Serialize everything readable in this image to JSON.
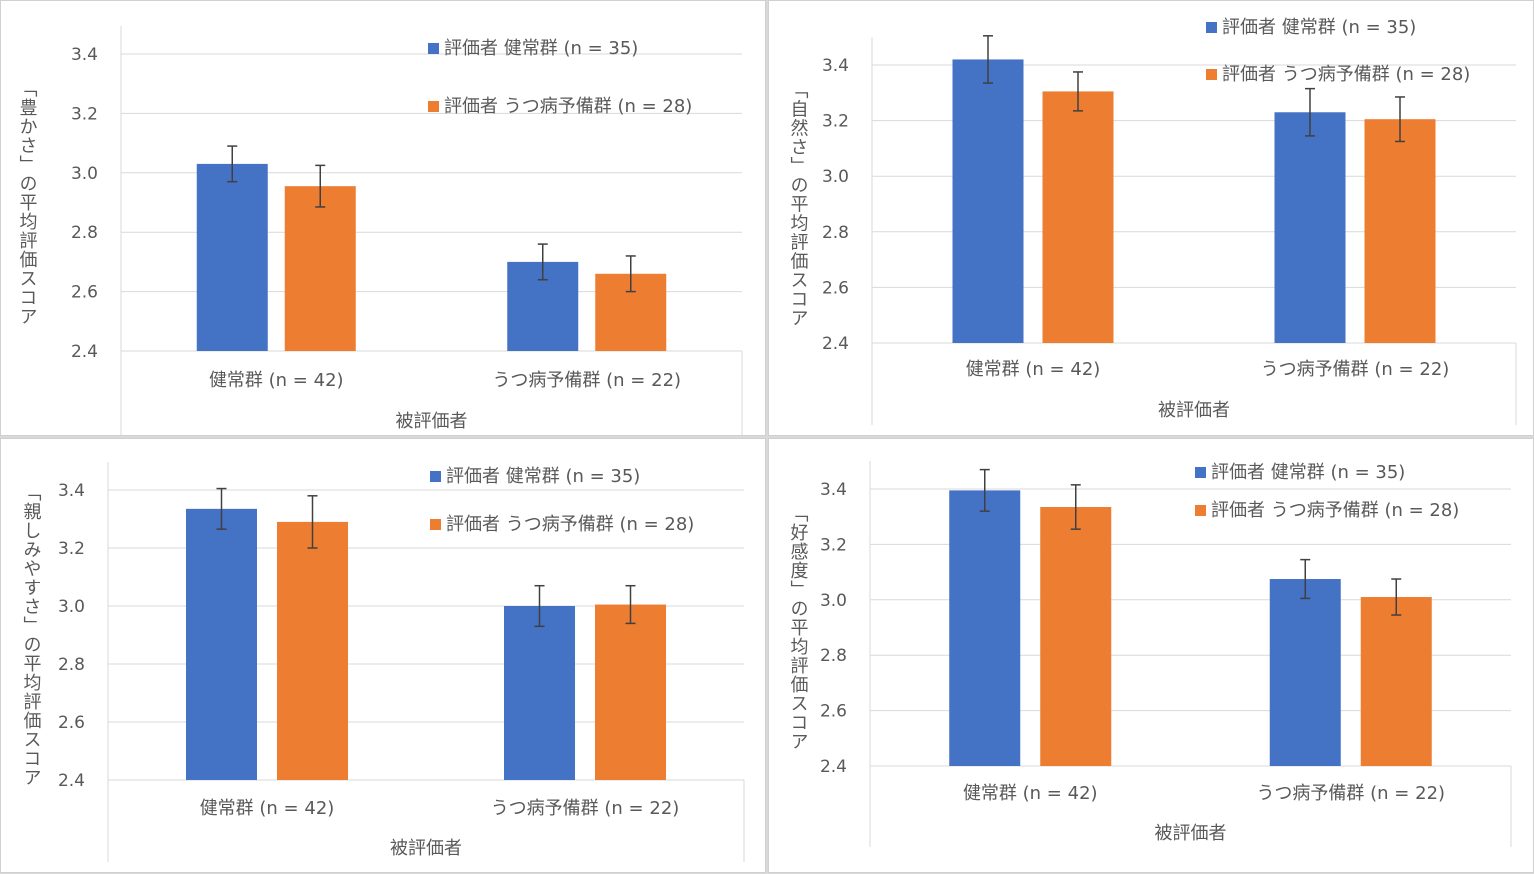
{
  "colors": {
    "series_1": "#4472C4",
    "series_2": "#ED7D31",
    "grid": "#d9d9d9",
    "error_bar": "#404040",
    "text": "#595959"
  },
  "chart_data": [
    {
      "type": "bar",
      "ylabel": "「豊かさ」の平均評価スコア",
      "xlabel": "被評価者",
      "categories": [
        "健常群 (n = 42)",
        "うつ病予備群 (n = 22)"
      ],
      "ylim": [
        2.4,
        3.4
      ],
      "yticks": [
        "3.4",
        "3.2",
        "3.0",
        "2.8",
        "2.6",
        "2.4"
      ],
      "legend_position": "top-right",
      "grid": true,
      "series": [
        {
          "name": "評価者 健常群 (n = 35)",
          "values": [
            3.03,
            2.7
          ],
          "error": [
            0.06,
            0.06
          ]
        },
        {
          "name": "評価者 うつ病予備群 (n = 28)",
          "values": [
            2.955,
            2.66
          ],
          "error": [
            0.07,
            0.06
          ]
        }
      ]
    },
    {
      "type": "bar",
      "ylabel": "「自然さ」の平均評価スコア",
      "xlabel": "被評価者",
      "categories": [
        "健常群 (n = 42)",
        "うつ病予備群 (n = 22)"
      ],
      "ylim": [
        2.4,
        3.4
      ],
      "yticks": [
        "3.4",
        "3.2",
        "3.0",
        "2.8",
        "2.6",
        "2.4"
      ],
      "legend_position": "top-right",
      "grid": true,
      "series": [
        {
          "name": "評価者 健常群 (n = 35)",
          "values": [
            3.42,
            3.23
          ],
          "error": [
            0.085,
            0.085
          ]
        },
        {
          "name": "評価者 うつ病予備群 (n = 28)",
          "values": [
            3.305,
            3.205
          ],
          "error": [
            0.07,
            0.08
          ]
        }
      ]
    },
    {
      "type": "bar",
      "ylabel": "「親しみやすさ」の平均評価スコア",
      "xlabel": "被評価者",
      "categories": [
        "健常群 (n = 42)",
        "うつ病予備群 (n = 22)"
      ],
      "ylim": [
        2.4,
        3.4
      ],
      "yticks": [
        "3.4",
        "3.2",
        "3.0",
        "2.8",
        "2.6",
        "2.4"
      ],
      "legend_position": "top-right",
      "grid": true,
      "series": [
        {
          "name": "評価者 健常群 (n = 35)",
          "values": [
            3.335,
            3.0
          ],
          "error": [
            0.07,
            0.07
          ]
        },
        {
          "name": "評価者 うつ病予備群 (n = 28)",
          "values": [
            3.29,
            3.005
          ],
          "error": [
            0.09,
            0.065
          ]
        }
      ]
    },
    {
      "type": "bar",
      "ylabel": "「好感度」の平均評価スコア",
      "xlabel": "被評価者",
      "categories": [
        "健常群 (n = 42)",
        "うつ病予備群 (n = 22)"
      ],
      "ylim": [
        2.4,
        3.4
      ],
      "yticks": [
        "3.4",
        "3.2",
        "3.0",
        "2.8",
        "2.6",
        "2.4"
      ],
      "legend_position": "top-right",
      "grid": true,
      "series": [
        {
          "name": "評価者 健常群 (n = 35)",
          "values": [
            3.395,
            3.075
          ],
          "error": [
            0.075,
            0.07
          ]
        },
        {
          "name": "評価者 うつ病予備群 (n = 28)",
          "values": [
            3.335,
            3.01
          ],
          "error": [
            0.08,
            0.065
          ]
        }
      ]
    }
  ]
}
